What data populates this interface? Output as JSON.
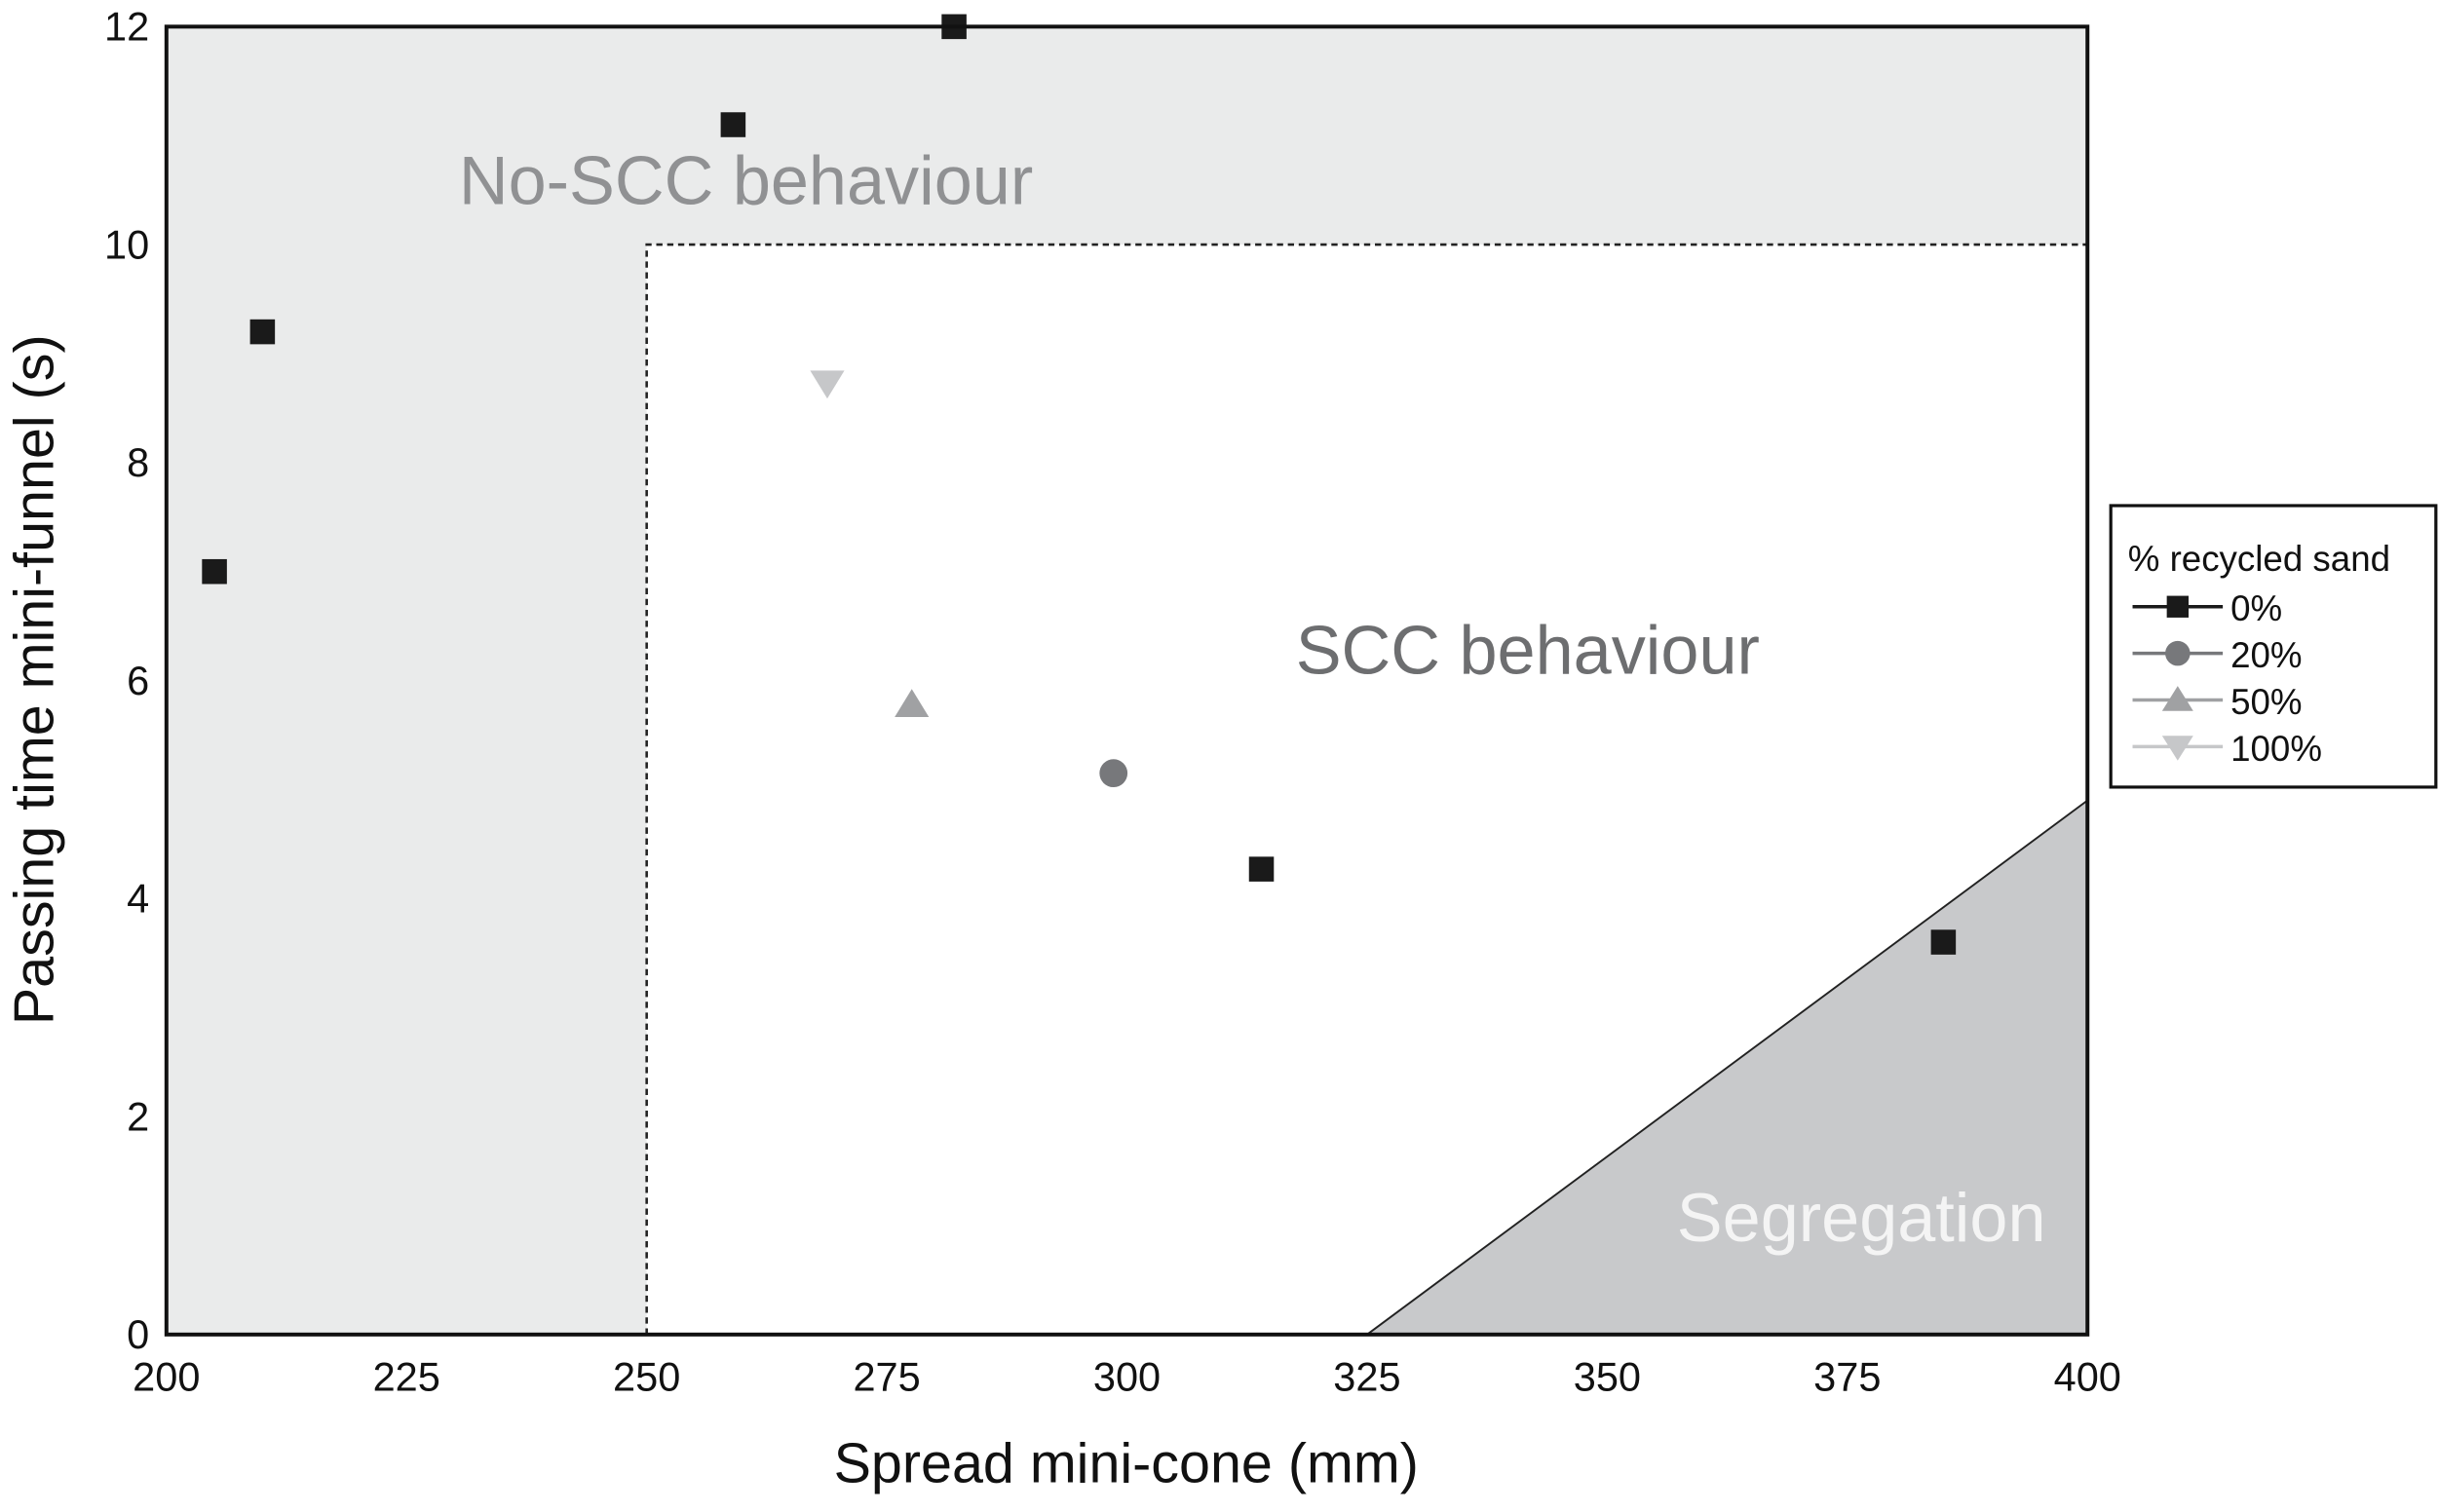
{
  "chart_data": {
    "type": "scatter",
    "xlabel": "Spread mini-cone (mm)",
    "ylabel": "Passing time mini-funnel (s)",
    "xlim": [
      200,
      400
    ],
    "ylim": [
      0,
      12
    ],
    "xticks": [
      200,
      225,
      250,
      275,
      300,
      325,
      350,
      375,
      400
    ],
    "yticks": [
      0,
      2,
      4,
      6,
      8,
      10,
      12
    ],
    "grid": false,
    "legend": {
      "title": "% recycled sand",
      "placement": "right"
    },
    "series": [
      {
        "name": "0%",
        "marker": "square",
        "color": "#1a1a1a",
        "points": [
          [
            205,
            7.0
          ],
          [
            210,
            9.2
          ],
          [
            259,
            11.1
          ],
          [
            282,
            12.0
          ],
          [
            314,
            4.27
          ],
          [
            385,
            3.6
          ]
        ]
      },
      {
        "name": "20%",
        "marker": "circle",
        "color": "#77787b",
        "points": [
          [
            298.6,
            5.15
          ]
        ]
      },
      {
        "name": "50%",
        "marker": "triangle-up",
        "color": "#a0a1a3",
        "points": [
          [
            277.6,
            5.78
          ]
        ]
      },
      {
        "name": "100%",
        "marker": "triangle-down",
        "color": "#c6c7c9",
        "points": [
          [
            268.8,
            8.73
          ]
        ]
      }
    ],
    "regions": [
      {
        "label": "No-SCC behaviour",
        "fill": "#eaebeb",
        "label_color": "#909193"
      },
      {
        "label": "SCC behaviour",
        "fill": "#ffffff",
        "label_color": "#6d6e70",
        "bounds": {
          "x_min": 250,
          "y_max": 10
        }
      },
      {
        "label": "Segregation",
        "fill": "#c8c9cb",
        "label_color": "#f2f2f2",
        "polygon": [
          [
            325,
            0
          ],
          [
            400,
            4.9
          ],
          [
            400,
            0
          ]
        ]
      }
    ]
  }
}
